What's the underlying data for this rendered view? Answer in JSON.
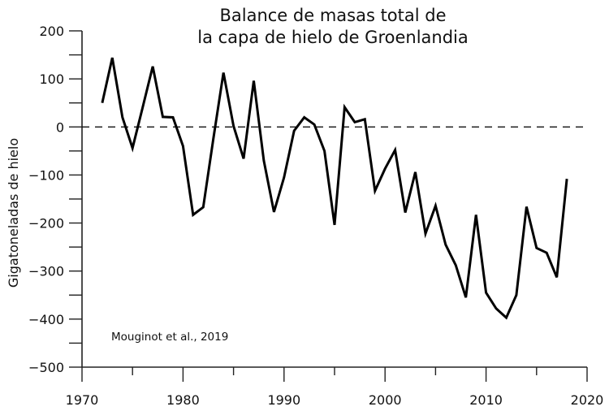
{
  "chart_data": {
    "type": "line",
    "title_lines": [
      "Balance de masas total de",
      "la capa de hielo de Groenlandia"
    ],
    "xlabel": "",
    "ylabel": "Gigatoneladas de hielo",
    "annotation": "Mouginot et al., 2019",
    "xlim": [
      1970,
      2020
    ],
    "ylim": [
      -500,
      200
    ],
    "x_ticks": [
      1970,
      1980,
      1990,
      2000,
      2010,
      2020
    ],
    "x_tick_labels": [
      "1970",
      "1980",
      "1990",
      "2000",
      "2010",
      "2020"
    ],
    "y_ticks": [
      200,
      100,
      0,
      -100,
      -200,
      -300,
      -400,
      -500
    ],
    "y_tick_labels": [
      "200",
      "100",
      "0",
      "−100",
      "−200",
      "−300",
      "−400",
      "−500"
    ],
    "reference_line": 0,
    "grid": false,
    "series": [
      {
        "name": "Balance de masas",
        "color": "#000000",
        "x": [
          1972,
          1973,
          1974,
          1975,
          1976,
          1977,
          1978,
          1979,
          1980,
          1981,
          1982,
          1983,
          1984,
          1985,
          1986,
          1987,
          1988,
          1989,
          1990,
          1991,
          1992,
          1993,
          1994,
          1995,
          1996,
          1997,
          1998,
          1999,
          2000,
          2001,
          2002,
          2003,
          2004,
          2005,
          2006,
          2007,
          2008,
          2009,
          2010,
          2011,
          2012,
          2013,
          2014,
          2015,
          2016,
          2017,
          2018
        ],
        "values": [
          50,
          144,
          20,
          -44,
          40,
          126,
          21,
          20,
          -40,
          -183,
          -167,
          -25,
          113,
          2,
          -66,
          96,
          -70,
          -177,
          -105,
          -8,
          20,
          5,
          -50,
          -204,
          41,
          10,
          16,
          -133,
          -87,
          -48,
          -178,
          -94,
          -222,
          -164,
          -245,
          -288,
          -355,
          -183,
          -345,
          -378,
          -397,
          -350,
          -166,
          -252,
          -262,
          -313,
          -108
        ]
      }
    ]
  }
}
